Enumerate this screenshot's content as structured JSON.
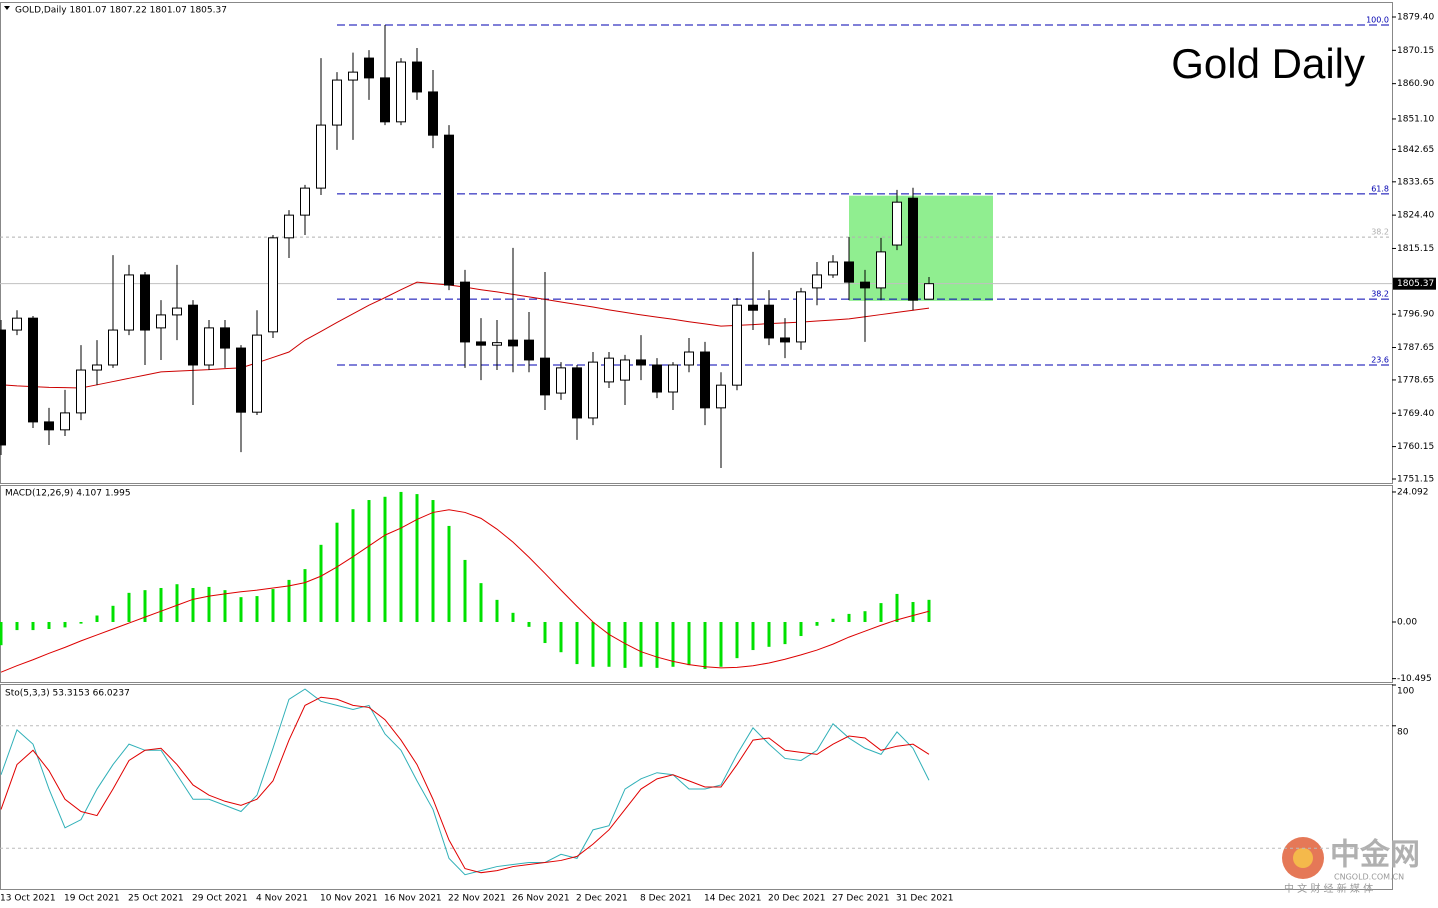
{
  "chart_data": [
    {
      "type": "candlestick",
      "title": "Gold Daily",
      "header": "GOLD,Daily  1801.07 1807.22 1801.07 1805.37",
      "categories": [
        "13 Oct 2021",
        null,
        null,
        null,
        "19 Oct 2021",
        null,
        null,
        null,
        "25 Oct 2021",
        null,
        null,
        null,
        "29 Oct 2021",
        null,
        null,
        null,
        "4 Nov 2021",
        null,
        null,
        null,
        "10 Nov 2021",
        null,
        null,
        null,
        "16 Nov 2021",
        null,
        null,
        null,
        "22 Nov 2021",
        null,
        null,
        null,
        "26 Nov 2021",
        null,
        null,
        null,
        "2 Dec 2021",
        null,
        null,
        null,
        "8 Dec 2021",
        null,
        null,
        null,
        "14 Dec 2021",
        null,
        null,
        null,
        "20 Dec 2021",
        null,
        null,
        null,
        "27 Dec 2021",
        null,
        null,
        null,
        "31 Dec 2021",
        null,
        null
      ],
      "open": [
        1792.5,
        1792.5,
        1795.8,
        1767.0,
        1764.8,
        1769.5,
        1781.4,
        1782.8,
        1792.5,
        1807.8,
        1793.1,
        1796.7,
        1799.4,
        1782.8,
        1793.1,
        1787.5,
        1769.7,
        1792.0,
        1818.1,
        1824.4,
        1831.9,
        1849.4,
        1861.9,
        1868.0,
        1862.5,
        1850.3,
        1866.9,
        1858.6,
        1846.6,
        1805.8,
        1789.2,
        1788.3,
        1789.7,
        1789.7,
        1784.7,
        1775.0,
        1782.0,
        1768.1,
        1778.1,
        1778.6,
        1784.2,
        1782.8,
        1775.3,
        1782.8,
        1786.4,
        1770.9,
        1777.2,
        1799.4,
        1799.4,
        1790.3,
        1789.2,
        1804.2,
        1807.8,
        1811.4,
        1805.8,
        1804.2,
        1816.1,
        1829.1,
        1801.07
      ],
      "high": [
        1795.3,
        1798.0,
        1796.4,
        1770.9,
        1775.9,
        1788.3,
        1789.7,
        1813.3,
        1810.6,
        1808.6,
        1800.8,
        1810.6,
        1800.8,
        1795.3,
        1795.3,
        1788.3,
        1798.0,
        1818.9,
        1825.8,
        1832.8,
        1868.0,
        1864.1,
        1869.5,
        1870.2,
        1877.2,
        1868.0,
        1870.8,
        1864.7,
        1849.4,
        1809.2,
        1795.8,
        1795.3,
        1815.3,
        1797.5,
        1808.6,
        1783.6,
        1782.8,
        1786.4,
        1786.4,
        1785.6,
        1791.1,
        1784.7,
        1783.6,
        1790.3,
        1789.2,
        1780.8,
        1801.4,
        1814.2,
        1803.6,
        1795.8,
        1804.2,
        1811.4,
        1813.3,
        1818.3,
        1809.2,
        1818.1,
        1831.4,
        1832.0,
        1807.22
      ],
      "low": [
        1757.8,
        1791.1,
        1765.3,
        1760.6,
        1763.1,
        1767.5,
        1777.2,
        1782.0,
        1791.1,
        1782.8,
        1784.2,
        1789.7,
        1771.7,
        1781.4,
        1782.0,
        1758.6,
        1768.9,
        1790.3,
        1812.5,
        1818.9,
        1830.0,
        1842.5,
        1845.3,
        1856.4,
        1849.4,
        1849.4,
        1856.4,
        1843.0,
        1803.6,
        1782.0,
        1778.6,
        1781.4,
        1780.8,
        1780.8,
        1770.3,
        1773.1,
        1762.0,
        1766.1,
        1776.4,
        1771.7,
        1778.6,
        1773.6,
        1770.3,
        1780.8,
        1766.1,
        1754.2,
        1775.8,
        1792.5,
        1788.3,
        1784.7,
        1787.0,
        1799.4,
        1807.0,
        1800.8,
        1789.2,
        1800.8,
        1814.7,
        1798.0,
        1801.07
      ],
      "close": [
        1760.6,
        1795.8,
        1767.0,
        1764.8,
        1769.5,
        1781.4,
        1782.8,
        1792.5,
        1807.8,
        1792.5,
        1796.7,
        1798.6,
        1782.8,
        1793.1,
        1787.5,
        1769.7,
        1791.1,
        1818.1,
        1824.4,
        1831.9,
        1849.4,
        1861.9,
        1864.1,
        1862.5,
        1850.3,
        1866.9,
        1858.6,
        1846.6,
        1805.0,
        1789.2,
        1788.3,
        1789.0,
        1788.1,
        1784.2,
        1774.5,
        1782.0,
        1768.1,
        1783.6,
        1784.7,
        1784.2,
        1782.8,
        1775.3,
        1782.8,
        1786.4,
        1770.9,
        1777.2,
        1799.4,
        1798.0,
        1790.3,
        1789.2,
        1803.1,
        1807.8,
        1811.4,
        1805.8,
        1804.2,
        1814.2,
        1828.0,
        1800.8,
        1805.37
      ],
      "up_color": "#ffffff",
      "down_color": "#000000",
      "ma": {
        "color": "#cc0000",
        "values": [
          1777.3,
          1777.0,
          1776.8,
          1776.6,
          1776.5,
          1776.4,
          1777.3,
          1778.2,
          1779.1,
          1780.0,
          1780.9,
          1781.1,
          1781.3,
          1781.5,
          1781.8,
          1782.0,
          1783.4,
          1784.9,
          1786.4,
          1789.7,
          1792.1,
          1794.6,
          1797.0,
          1799.4,
          1801.5,
          1803.7,
          1805.8,
          1805.4,
          1805.0,
          1804.4,
          1803.7,
          1803.1,
          1802.4,
          1801.7,
          1801.0,
          1800.3,
          1799.6,
          1798.9,
          1798.1,
          1797.4,
          1796.7,
          1796.1,
          1795.5,
          1794.8,
          1794.2,
          1793.6,
          1793.8,
          1794.0,
          1794.3,
          1794.5,
          1794.7,
          1795.0,
          1795.3,
          1795.6,
          1796.2,
          1796.8,
          1797.4,
          1798.0,
          1798.6
        ]
      },
      "ylim": [
        1750.04,
        1883.29
      ],
      "yticks": [
        {
          "value": 1879.4,
          "label": "1879.40"
        },
        1870.15,
        {
          "value": 1860.9,
          "label": "1860.90"
        },
        {
          "value": 1851.1,
          "label": "1851.10"
        },
        1842.65,
        1833.65,
        {
          "value": 1824.4,
          "label": "1824.40"
        },
        1815.15,
        {
          "value": 1796.9,
          "label": "1796.90"
        },
        1787.65,
        1778.65,
        {
          "value": 1769.4,
          "label": "1769.40"
        },
        1760.15,
        1751.15
      ],
      "last_price": 1805.37,
      "levels": [
        {
          "label": "100.0",
          "value": 1877.2,
          "color": "#0000b0",
          "style": "dashed"
        },
        {
          "label": "61.8",
          "value": 1830.3,
          "color": "#0000b0",
          "style": "dashed"
        },
        {
          "label": "38.2",
          "value": 1818.3,
          "color": "#b0b0b0",
          "style": "dotted"
        },
        {
          "label": "38.2",
          "value": 1801.1,
          "color": "#0000b0",
          "style": "dashed"
        },
        {
          "label": "23.6",
          "value": 1782.8,
          "color": "#0000b0",
          "style": "dashed"
        }
      ],
      "highlight": {
        "range": [
          1800.6,
          1829.8
        ],
        "color": "#90ee90"
      },
      "watermark": {
        "name": "中金网",
        "domain": "CNGOLD.COM.CN",
        "tagline": "中 文 财 经 新 媒 体"
      }
    },
    {
      "type": "macd",
      "header": "MACD(12,26,9) 4.107 1.995",
      "histogram": {
        "color": "#00e000",
        "values": [
          -4.3,
          -1.5,
          -1.5,
          -1.3,
          -1.0,
          -0.3,
          1.2,
          3.0,
          5.4,
          5.9,
          6.3,
          7.0,
          6.3,
          6.5,
          5.9,
          4.6,
          4.8,
          6.1,
          7.8,
          9.8,
          14.3,
          18.4,
          20.9,
          22.6,
          23.2,
          24.1,
          23.7,
          22.6,
          17.8,
          11.5,
          7.2,
          4.1,
          1.7,
          -0.9,
          -3.9,
          -5.6,
          -7.8,
          -8.3,
          -8.3,
          -8.5,
          -8.3,
          -8.5,
          -8.3,
          -8.0,
          -8.7,
          -8.3,
          -6.7,
          -5.2,
          -4.6,
          -4.1,
          -2.6,
          -0.7,
          0.6,
          1.5,
          2.0,
          3.5,
          5.2,
          3.7,
          4.107
        ]
      },
      "signal": {
        "color": "#dd0000",
        "values": [
          -9.3,
          -8.1,
          -7.0,
          -5.8,
          -4.7,
          -3.5,
          -2.4,
          -1.3,
          -0.2,
          0.9,
          2.0,
          3.1,
          4.2,
          4.8,
          5.2,
          5.6,
          5.9,
          6.3,
          6.7,
          7.3,
          8.5,
          10.2,
          12.1,
          14.1,
          16.1,
          17.4,
          19.0,
          20.3,
          20.8,
          20.3,
          19.2,
          17.2,
          14.8,
          12.0,
          9.0,
          5.9,
          2.9,
          0.0,
          -2.3,
          -4.0,
          -5.5,
          -6.5,
          -7.3,
          -7.9,
          -8.3,
          -8.5,
          -8.4,
          -8.1,
          -7.6,
          -6.9,
          -6.1,
          -5.2,
          -4.1,
          -2.8,
          -1.7,
          -0.6,
          0.4,
          1.2,
          1.995
        ]
      },
      "ylim": [
        -11.12,
        25.2
      ],
      "yticks": [
        24.092,
        {
          "value": 0,
          "label": "0.00"
        },
        -10.495
      ]
    },
    {
      "type": "stochastic",
      "header": "Sto(5,3,3) 53.3153 66.0237",
      "series": [
        {
          "name": "%K",
          "color": "#30b0b8",
          "values": [
            56,
            78,
            71,
            49,
            30,
            34,
            49,
            61,
            71,
            68,
            68,
            56,
            44,
            44,
            41,
            38,
            46,
            69,
            93,
            98,
            92,
            90,
            88,
            90,
            76,
            68,
            53,
            39,
            15,
            7,
            9,
            11,
            12,
            13,
            13,
            17,
            15,
            29,
            31,
            49,
            54,
            57,
            56,
            49,
            49,
            51,
            66,
            79,
            71,
            64,
            63,
            68,
            81,
            74,
            69,
            66,
            77,
            69,
            53.3153
          ]
        },
        {
          "name": "%D",
          "color": "#e00000",
          "values": [
            39,
            61,
            68,
            58,
            44,
            38,
            36,
            49,
            63,
            68,
            69,
            61,
            51,
            46,
            43,
            41,
            44,
            53,
            73,
            90,
            94,
            93,
            90,
            89,
            83,
            73,
            61,
            44,
            24,
            10,
            8,
            9,
            11,
            12,
            13,
            14,
            16,
            22,
            29,
            39,
            49,
            54,
            56,
            53,
            50,
            50,
            61,
            73,
            74,
            68,
            67,
            66,
            71,
            75,
            74,
            68,
            70,
            71,
            66.0237
          ]
        }
      ],
      "ylim": [
        0,
        100
      ],
      "yticks": [
        100,
        80
      ],
      "levels": [
        80,
        20
      ]
    }
  ]
}
